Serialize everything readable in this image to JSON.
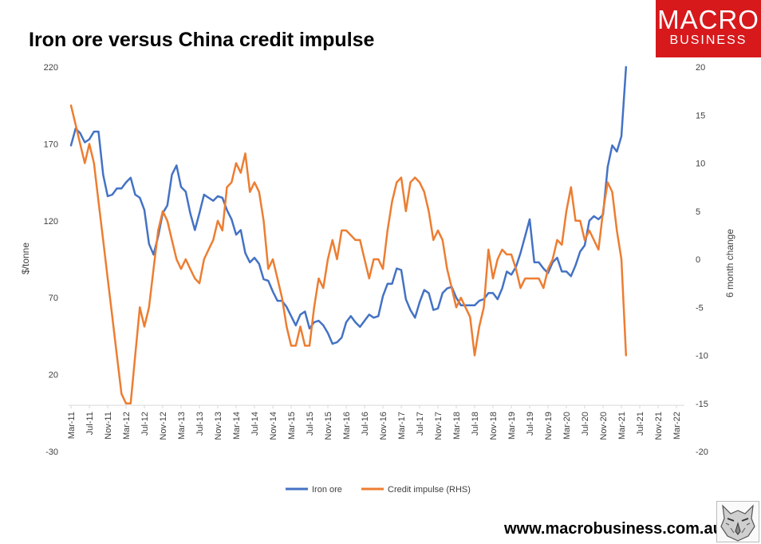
{
  "brand": {
    "line1": "MACRO",
    "line2": "BUSINESS",
    "website": "www.macrobusiness.com.au",
    "logo_icon": "wolf-logo-icon",
    "accent": "#d7191c"
  },
  "chart_data": {
    "type": "line",
    "title": "Iron ore versus China credit impulse",
    "ylabel": "$/tonne",
    "y2label": "6 month change",
    "ylim": [
      -30,
      220
    ],
    "y2lim": [
      -20,
      20
    ],
    "yticks": [
      -30,
      20,
      70,
      120,
      170,
      220
    ],
    "y2ticks": [
      -20,
      -15,
      -10,
      -5,
      0,
      5,
      10,
      15,
      20
    ],
    "x_categories": [
      "Mar-11",
      "Jul-11",
      "Nov-11",
      "Mar-12",
      "Jul-12",
      "Nov-12",
      "Mar-13",
      "Jul-13",
      "Nov-13",
      "Mar-14",
      "Jul-14",
      "Nov-14",
      "Mar-15",
      "Jul-15",
      "Nov-15",
      "Mar-16",
      "Jul-16",
      "Nov-16",
      "Mar-17",
      "Jul-17",
      "Nov-17",
      "Mar-18",
      "Jul-18",
      "Nov-18",
      "Mar-19",
      "Jul-19",
      "Nov-19",
      "Mar-20",
      "Jul-20",
      "Nov-20",
      "Mar-21",
      "Jul-21",
      "Nov-21",
      "Mar-22"
    ],
    "grid": false,
    "legend_position": "bottom",
    "series": [
      {
        "name": "Iron ore",
        "axis": "left",
        "color": "#4472c4",
        "start": "Mar-11",
        "values": [
          169,
          180,
          177,
          171,
          173,
          178,
          178,
          150,
          136,
          137,
          141,
          141,
          145,
          148,
          137,
          135,
          127,
          105,
          98,
          110,
          125,
          130,
          150,
          156,
          142,
          139,
          125,
          114,
          125,
          137,
          135,
          133,
          136,
          135,
          127,
          121,
          111,
          114,
          99,
          93,
          96,
          92,
          82,
          81,
          74,
          68,
          68,
          64,
          58,
          52,
          59,
          61,
          50,
          54,
          55,
          52,
          47,
          40,
          41,
          44,
          54,
          58,
          54,
          51,
          55,
          59,
          57,
          58,
          71,
          79,
          79,
          89,
          88,
          69,
          62,
          57,
          67,
          75,
          73,
          62,
          63,
          73,
          76,
          77,
          70,
          65,
          65,
          65,
          65,
          68,
          69,
          73,
          73,
          69,
          76,
          87,
          85,
          90,
          99,
          110,
          121,
          93,
          93,
          89,
          86,
          93,
          96,
          87,
          87,
          84,
          91,
          100,
          104,
          120,
          123,
          121,
          124,
          155,
          169,
          165,
          175,
          220
        ]
      },
      {
        "name": "Credit impulse (RHS)",
        "axis": "right",
        "color": "#ed7d31",
        "start": "Mar-11",
        "values": [
          16,
          14,
          12,
          10,
          12,
          10,
          6,
          2,
          -2,
          -6,
          -10,
          -14,
          -15,
          -15,
          -10,
          -5,
          -7,
          -5,
          -1,
          3,
          5,
          4,
          2,
          0,
          -1,
          0,
          -1,
          -2,
          -2.5,
          0,
          1,
          2,
          4,
          3,
          7.5,
          8,
          10,
          9,
          11,
          7,
          8,
          7,
          4,
          -1,
          0,
          -2,
          -4,
          -7,
          -9,
          -9,
          -7,
          -9,
          -9,
          -5,
          -2,
          -3,
          0,
          2,
          0,
          3,
          3,
          2.5,
          2,
          2,
          0,
          -2,
          0,
          0,
          -1,
          3,
          6,
          8,
          8.5,
          5,
          8,
          8.5,
          8,
          7,
          5,
          2,
          3,
          2,
          -1,
          -3,
          -5,
          -4,
          -5,
          -6,
          -10,
          -7,
          -5,
          1,
          -2,
          0,
          1,
          0.5,
          0.5,
          -1,
          -3,
          -2,
          -2,
          -2,
          -2,
          -3,
          -1,
          0,
          2,
          1.5,
          5,
          7.5,
          4,
          4,
          2,
          3,
          2,
          1,
          5,
          8,
          7,
          3,
          0,
          -10
        ]
      }
    ]
  }
}
